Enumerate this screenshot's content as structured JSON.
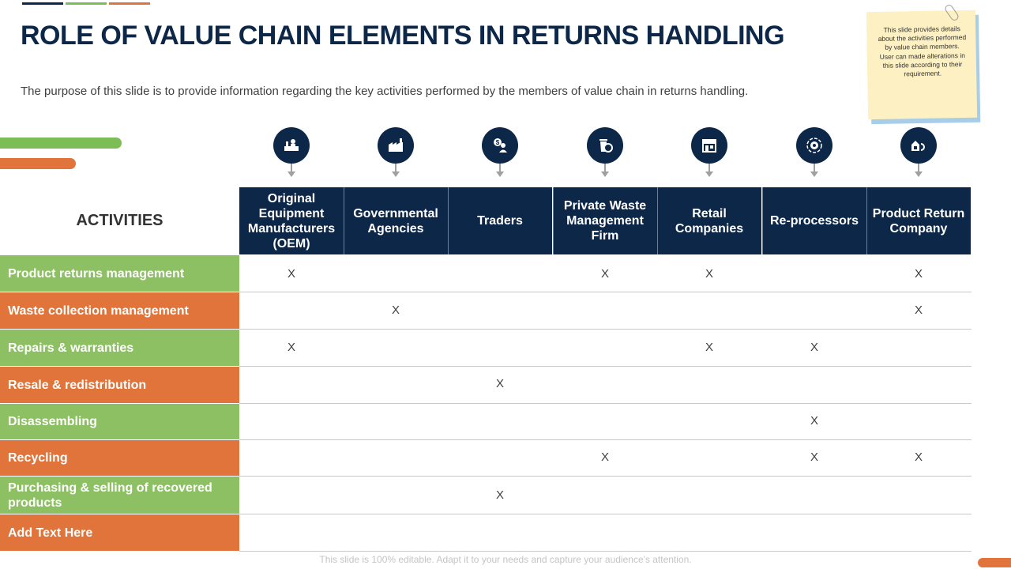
{
  "title": "ROLE OF VALUE CHAIN ELEMENTS IN RETURNS HANDLING",
  "subtitle": "The purpose of this slide is to provide information regarding the key activities performed by the members of value chain in returns handling.",
  "note": "This slide provides details about the activities performed by value chain members. User can made alterations in this slide according to their requirement.",
  "activities_label": "ACTIVITIES",
  "columns": [
    {
      "label": "Original Equipment Manufacturers (OEM)",
      "icon": "factory-worker-icon"
    },
    {
      "label": "Governmental Agencies",
      "icon": "government-building-icon"
    },
    {
      "label": "Traders",
      "icon": "trader-dollar-icon"
    },
    {
      "label": "Private Waste Management Firm",
      "icon": "waste-bin-recycle-icon"
    },
    {
      "label": "Retail Companies",
      "icon": "retail-store-icon"
    },
    {
      "label": "Re-processors",
      "icon": "gear-cycle-icon"
    },
    {
      "label": "Product Return Company",
      "icon": "return-box-icon"
    }
  ],
  "rows": [
    {
      "label": "Product returns management",
      "marks": [
        "X",
        "",
        "",
        "X",
        "X",
        "",
        "X"
      ]
    },
    {
      "label": "Waste collection management",
      "marks": [
        "",
        "X",
        "",
        "",
        "",
        "",
        "X"
      ]
    },
    {
      "label": "Repairs & warranties",
      "marks": [
        "X",
        "",
        "",
        "",
        "X",
        "X",
        ""
      ]
    },
    {
      "label": "Resale & redistribution",
      "marks": [
        "",
        "",
        "X",
        "",
        "",
        "",
        ""
      ]
    },
    {
      "label": "Disassembling",
      "marks": [
        "",
        "",
        "",
        "",
        "",
        "X",
        ""
      ]
    },
    {
      "label": "Recycling",
      "marks": [
        "",
        "",
        "",
        "X",
        "",
        "X",
        "X"
      ]
    },
    {
      "label": "Purchasing & selling of recovered products",
      "marks": [
        "",
        "",
        "X",
        "",
        "",
        "",
        ""
      ]
    },
    {
      "label": "Add Text Here",
      "marks": [
        "",
        "",
        "",
        "",
        "",
        "",
        ""
      ]
    }
  ],
  "footer": "This slide is 100% editable. Adapt it to your needs and capture your audience's attention.",
  "colors": {
    "navy": "#0c2748",
    "green": "#8cc063",
    "orange": "#e0743a"
  }
}
